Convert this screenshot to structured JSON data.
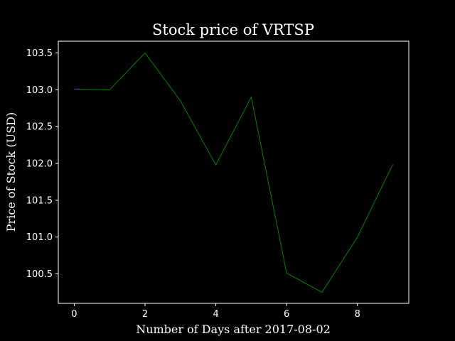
{
  "chart_data": {
    "type": "line",
    "title": "Stock price of VRTSP",
    "xlabel": "Number of Days after 2017-08-02",
    "ylabel": "Price of Stock (USD)",
    "x": [
      0,
      1,
      2,
      3,
      4,
      5,
      6,
      7,
      8,
      9
    ],
    "series": [
      {
        "values": [
          103.01,
          103.0,
          103.5,
          102.85,
          101.98,
          102.9,
          100.51,
          100.25,
          101.0,
          101.99
        ]
      }
    ],
    "xlim": [
      -0.45,
      9.45
    ],
    "ylim": [
      100.1,
      103.66
    ],
    "xticks": [
      0,
      2,
      4,
      6,
      8
    ],
    "xtick_labels": [
      "0",
      "2",
      "4",
      "6",
      "8"
    ],
    "yticks": [
      100.5,
      101.0,
      101.5,
      102.0,
      102.5,
      103.0,
      103.5
    ],
    "ytick_labels": [
      "100.5",
      "101.0",
      "101.5",
      "102.0",
      "102.5",
      "103.0",
      "103.5"
    ],
    "grid": false,
    "legend": "none",
    "colors": {
      "background": "#000000",
      "axes": "#ffffff",
      "line": "#008000",
      "text": "#ffffff"
    }
  }
}
